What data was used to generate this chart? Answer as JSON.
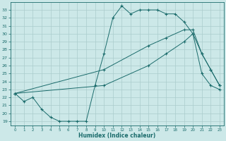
{
  "xlabel": "Humidex (Indice chaleur)",
  "background_color": "#cce8e8",
  "line_color": "#1a6b6b",
  "grid_color": "#aacccc",
  "xlim": [
    -0.5,
    23.5
  ],
  "ylim": [
    18.5,
    34.0
  ],
  "xticks": [
    0,
    1,
    2,
    3,
    4,
    5,
    6,
    7,
    8,
    9,
    10,
    11,
    12,
    13,
    14,
    15,
    16,
    17,
    18,
    19,
    20,
    21,
    22,
    23
  ],
  "yticks": [
    19,
    20,
    21,
    22,
    23,
    24,
    25,
    26,
    27,
    28,
    29,
    30,
    31,
    32,
    33
  ],
  "line1_x": [
    0,
    1,
    2,
    3,
    4,
    5,
    6,
    7,
    8,
    9,
    10,
    11,
    12,
    13,
    14,
    15,
    16,
    17,
    18,
    19,
    20,
    21,
    22,
    23
  ],
  "line1_y": [
    22.5,
    21.5,
    22.0,
    20.5,
    19.5,
    19.0,
    19.0,
    19.0,
    19.0,
    23.5,
    27.5,
    32.0,
    33.5,
    32.5,
    33.0,
    33.0,
    33.0,
    32.5,
    32.5,
    31.5,
    30.0,
    25.0,
    23.5,
    23.0
  ],
  "line2_x": [
    0,
    10,
    15,
    17,
    19,
    20,
    21,
    22,
    23
  ],
  "line2_y": [
    22.5,
    25.5,
    28.5,
    29.5,
    30.5,
    30.5,
    27.5,
    25.5,
    23.5
  ],
  "line3_x": [
    0,
    10,
    15,
    17,
    19,
    20,
    21,
    22,
    23
  ],
  "line3_y": [
    22.5,
    23.5,
    26.0,
    27.5,
    29.0,
    30.0,
    27.5,
    25.5,
    23.5
  ]
}
